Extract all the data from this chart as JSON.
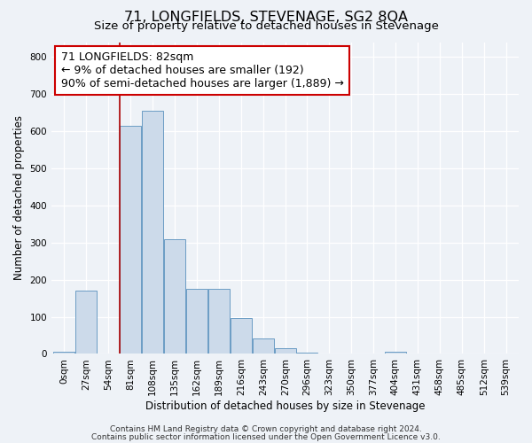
{
  "title": "71, LONGFIELDS, STEVENAGE, SG2 8QA",
  "subtitle": "Size of property relative to detached houses in Stevenage",
  "xlabel": "Distribution of detached houses by size in Stevenage",
  "ylabel": "Number of detached properties",
  "bin_labels": [
    "0sqm",
    "27sqm",
    "54sqm",
    "81sqm",
    "108sqm",
    "135sqm",
    "162sqm",
    "189sqm",
    "216sqm",
    "243sqm",
    "270sqm",
    "296sqm",
    "323sqm",
    "350sqm",
    "377sqm",
    "404sqm",
    "431sqm",
    "458sqm",
    "485sqm",
    "512sqm",
    "539sqm"
  ],
  "bin_edges": [
    0,
    27,
    54,
    81,
    108,
    135,
    162,
    189,
    216,
    243,
    270,
    296,
    323,
    350,
    377,
    404,
    431,
    458,
    485,
    512,
    539
  ],
  "bar_heights": [
    5,
    170,
    0,
    615,
    655,
    310,
    175,
    175,
    97,
    42,
    15,
    3,
    0,
    0,
    0,
    5,
    0,
    0,
    0,
    0,
    0
  ],
  "bar_color": "#ccdaea",
  "bar_edge_color": "#6b9cc4",
  "ylim": [
    0,
    840
  ],
  "yticks": [
    0,
    100,
    200,
    300,
    400,
    500,
    600,
    700,
    800
  ],
  "vline_x": 81,
  "vline_color": "#aa0000",
  "annotation_text": "71 LONGFIELDS: 82sqm\n← 9% of detached houses are smaller (192)\n90% of semi-detached houses are larger (1,889) →",
  "footer_line1": "Contains HM Land Registry data © Crown copyright and database right 2024.",
  "footer_line2": "Contains public sector information licensed under the Open Government Licence v3.0.",
  "background_color": "#eef2f7",
  "plot_bg_color": "#eef2f7",
  "title_fontsize": 11.5,
  "subtitle_fontsize": 9.5,
  "annotation_fontsize": 9,
  "axis_label_fontsize": 8.5,
  "tick_fontsize": 7.5,
  "footer_fontsize": 6.5
}
